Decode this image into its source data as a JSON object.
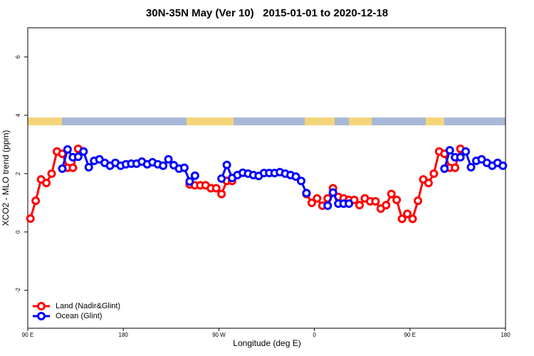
{
  "chart_data": {
    "type": "line",
    "title": "30N-35N May (Ver 10)   2015-01-01 to 2020-12-18",
    "x_label": "Longitude (deg E)",
    "y_label": "XCO2 - MLO trend (ppm)",
    "xlim": [
      90,
      540
    ],
    "ylim": [
      -3.3,
      7
    ],
    "xticks": [
      {
        "value": 90,
        "label": "90 E"
      },
      180,
      {
        "value": 270,
        "label": "90 W"
      },
      {
        "value": 360,
        "label": "0"
      },
      {
        "value": 450,
        "label": "90 E"
      },
      {
        "value": 540,
        "label": "180"
      }
    ],
    "yticks": [
      -2,
      0,
      2,
      4,
      6
    ],
    "legend": "bottom-left",
    "series": [
      {
        "name": "Land (Nadir&Glint)",
        "color": "#ff0000",
        "x": [
          92.5,
          97.5,
          102.5,
          107.5,
          112.5,
          117.5,
          122.5,
          127.5,
          132.5,
          137.5,
          142.5,
          242.5,
          247.5,
          252.5,
          257.5,
          262.5,
          267.5,
          272.5,
          277.5,
          282.5,
          287.5,
          352.5,
          357.5,
          362.5,
          367.5,
          372.5,
          377.5,
          382.5,
          387.5,
          392.5,
          397.5,
          402.5,
          407.5,
          412.5,
          417.5,
          422.5,
          427.5,
          432.5,
          437.5,
          442.5,
          447.5,
          452.5,
          457.5,
          462.5,
          467.5,
          472.5,
          477.5,
          482.5,
          487.5,
          492.5,
          497.5
        ],
        "values": [
          0.46,
          1.07,
          1.8,
          1.68,
          2.0,
          2.76,
          2.68,
          2.2,
          2.2,
          2.85,
          null,
          1.63,
          1.6,
          1.6,
          1.6,
          1.5,
          1.5,
          1.3,
          1.75,
          1.75,
          null,
          1.3,
          1.0,
          1.15,
          0.9,
          1.15,
          1.5,
          1.2,
          1.15,
          1.1,
          1.1,
          0.92,
          1.15,
          1.05,
          1.05,
          0.8,
          0.92,
          1.3,
          1.1,
          0.45,
          0.62,
          0.45,
          1.07,
          1.8,
          1.68,
          2.0,
          2.76,
          2.68,
          2.2,
          2.2,
          2.85
        ]
      },
      {
        "name": "Ocean (Glint)",
        "color": "#0000ff",
        "x": [
          122.5,
          127.5,
          132.5,
          137.5,
          142.5,
          147.5,
          152.5,
          157.5,
          162.5,
          167.5,
          172.5,
          177.5,
          182.5,
          187.5,
          192.5,
          197.5,
          202.5,
          207.5,
          212.5,
          217.5,
          222.5,
          227.5,
          232.5,
          237.5,
          242.5,
          247.5,
          252.5,
          272.5,
          277.5,
          282.5,
          287.5,
          292.5,
          297.5,
          302.5,
          307.5,
          312.5,
          317.5,
          322.5,
          327.5,
          332.5,
          337.5,
          342.5,
          347.5,
          352.5,
          357.5,
          372.5,
          377.5,
          382.5,
          387.5,
          392.5,
          397.5,
          482.5,
          487.5,
          492.5,
          497.5,
          502.5,
          507.5,
          512.5,
          517.5,
          522.5,
          527.5,
          532.5,
          537.5
        ],
        "values": [
          2.17,
          2.83,
          2.56,
          2.58,
          2.76,
          2.22,
          2.44,
          2.49,
          2.37,
          2.27,
          2.37,
          2.27,
          2.32,
          2.34,
          2.34,
          2.41,
          2.32,
          2.39,
          2.32,
          2.27,
          2.49,
          2.29,
          2.17,
          2.2,
          1.73,
          1.93,
          null,
          1.83,
          2.3,
          1.85,
          1.95,
          2.03,
          2.0,
          1.95,
          1.92,
          2.02,
          2.02,
          2.02,
          2.05,
          2.0,
          1.95,
          1.9,
          1.75,
          1.33,
          null,
          0.9,
          1.35,
          0.97,
          0.97,
          0.97,
          null,
          2.17,
          2.8,
          2.56,
          2.56,
          2.76,
          2.22,
          2.44,
          2.49,
          2.37,
          2.27,
          2.37,
          2.27
        ]
      }
    ]
  }
}
